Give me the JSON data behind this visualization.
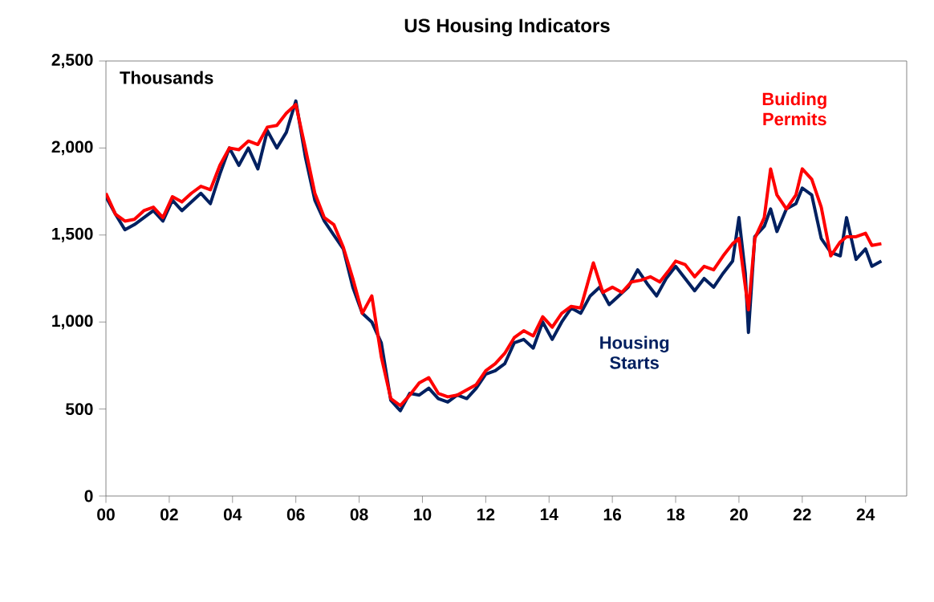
{
  "chart_data": {
    "type": "line",
    "title": "US Housing Indicators",
    "annotations": [
      "Thousands"
    ],
    "xlim": [
      2000,
      2025.3
    ],
    "ylim": [
      0,
      2500
    ],
    "xticks": [
      {
        "value": 2000,
        "label": "00"
      },
      {
        "value": 2002,
        "label": "02"
      },
      {
        "value": 2004,
        "label": "04"
      },
      {
        "value": 2006,
        "label": "06"
      },
      {
        "value": 2008,
        "label": "08"
      },
      {
        "value": 2010,
        "label": "10"
      },
      {
        "value": 2012,
        "label": "12"
      },
      {
        "value": 2014,
        "label": "14"
      },
      {
        "value": 2016,
        "label": "16"
      },
      {
        "value": 2018,
        "label": "18"
      },
      {
        "value": 2020,
        "label": "20"
      },
      {
        "value": 2022,
        "label": "22"
      },
      {
        "value": 2024,
        "label": "24"
      }
    ],
    "yticks": [
      {
        "value": 0,
        "label": "0"
      },
      {
        "value": 500,
        "label": "500"
      },
      {
        "value": 1000,
        "label": "1,000"
      },
      {
        "value": 1500,
        "label": "1,500"
      },
      {
        "value": 2000,
        "label": "2,000"
      },
      {
        "value": 2500,
        "label": "2,500"
      }
    ],
    "grid": false,
    "legend": false,
    "marker": "none",
    "line_style": "solid",
    "series": [
      {
        "name": "Housing Starts",
        "color": "#002060",
        "x": [
          2000.0,
          2000.3,
          2000.6,
          2000.9,
          2001.2,
          2001.5,
          2001.8,
          2002.1,
          2002.4,
          2002.7,
          2003.0,
          2003.3,
          2003.6,
          2003.9,
          2004.2,
          2004.5,
          2004.8,
          2005.1,
          2005.4,
          2005.7,
          2006.0,
          2006.3,
          2006.6,
          2006.9,
          2007.2,
          2007.5,
          2007.8,
          2008.1,
          2008.4,
          2008.7,
          2009.0,
          2009.3,
          2009.6,
          2009.9,
          2010.2,
          2010.5,
          2010.8,
          2011.1,
          2011.4,
          2011.7,
          2012.0,
          2012.3,
          2012.6,
          2012.9,
          2013.2,
          2013.5,
          2013.8,
          2014.1,
          2014.4,
          2014.7,
          2015.0,
          2015.3,
          2015.6,
          2015.9,
          2016.2,
          2016.5,
          2016.8,
          2017.1,
          2017.4,
          2017.7,
          2018.0,
          2018.3,
          2018.6,
          2018.9,
          2019.2,
          2019.5,
          2019.8,
          2020.0,
          2020.2,
          2020.3,
          2020.5,
          2020.8,
          2021.0,
          2021.2,
          2021.5,
          2021.8,
          2022.0,
          2022.3,
          2022.6,
          2022.9,
          2023.2,
          2023.4,
          2023.7,
          2024.0,
          2024.2,
          2024.5
        ],
        "values": [
          1720,
          1620,
          1530,
          1560,
          1600,
          1640,
          1580,
          1700,
          1640,
          1690,
          1740,
          1680,
          1850,
          2000,
          1900,
          2000,
          1880,
          2100,
          2000,
          2090,
          2270,
          1950,
          1700,
          1580,
          1500,
          1420,
          1200,
          1050,
          1000,
          880,
          550,
          490,
          590,
          580,
          620,
          560,
          540,
          580,
          560,
          620,
          700,
          720,
          760,
          880,
          900,
          850,
          1000,
          900,
          1000,
          1080,
          1050,
          1150,
          1200,
          1100,
          1150,
          1200,
          1300,
          1220,
          1150,
          1250,
          1320,
          1250,
          1180,
          1250,
          1200,
          1280,
          1350,
          1600,
          1280,
          940,
          1490,
          1550,
          1650,
          1520,
          1650,
          1680,
          1770,
          1730,
          1480,
          1400,
          1380,
          1600,
          1360,
          1420,
          1320,
          1350
        ]
      },
      {
        "name": "Buiding Permits",
        "color": "#ff0000",
        "x": [
          2000.0,
          2000.3,
          2000.6,
          2000.9,
          2001.2,
          2001.5,
          2001.8,
          2002.1,
          2002.4,
          2002.7,
          2003.0,
          2003.3,
          2003.6,
          2003.9,
          2004.2,
          2004.5,
          2004.8,
          2005.1,
          2005.4,
          2005.7,
          2006.0,
          2006.3,
          2006.6,
          2006.9,
          2007.2,
          2007.5,
          2007.8,
          2008.1,
          2008.4,
          2008.7,
          2009.0,
          2009.3,
          2009.6,
          2009.9,
          2010.2,
          2010.5,
          2010.8,
          2011.1,
          2011.4,
          2011.7,
          2012.0,
          2012.3,
          2012.6,
          2012.9,
          2013.2,
          2013.5,
          2013.8,
          2014.1,
          2014.4,
          2014.7,
          2015.0,
          2015.4,
          2015.7,
          2016.0,
          2016.3,
          2016.6,
          2016.9,
          2017.2,
          2017.5,
          2017.8,
          2018.0,
          2018.3,
          2018.6,
          2018.9,
          2019.2,
          2019.5,
          2019.8,
          2020.0,
          2020.3,
          2020.5,
          2020.8,
          2021.0,
          2021.2,
          2021.5,
          2021.8,
          2022.0,
          2022.3,
          2022.6,
          2022.9,
          2023.2,
          2023.4,
          2023.7,
          2024.0,
          2024.2,
          2024.5
        ],
        "values": [
          1740,
          1620,
          1580,
          1590,
          1640,
          1660,
          1600,
          1720,
          1690,
          1740,
          1780,
          1760,
          1900,
          2000,
          1990,
          2040,
          2020,
          2120,
          2130,
          2200,
          2250,
          2000,
          1740,
          1600,
          1560,
          1430,
          1250,
          1050,
          1150,
          800,
          560,
          520,
          580,
          650,
          680,
          590,
          570,
          580,
          610,
          640,
          720,
          760,
          820,
          910,
          950,
          920,
          1030,
          970,
          1050,
          1090,
          1080,
          1340,
          1170,
          1200,
          1170,
          1230,
          1240,
          1260,
          1230,
          1300,
          1350,
          1330,
          1260,
          1320,
          1300,
          1380,
          1450,
          1480,
          1070,
          1480,
          1600,
          1880,
          1730,
          1650,
          1730,
          1880,
          1820,
          1660,
          1380,
          1460,
          1490,
          1490,
          1510,
          1440,
          1450
        ]
      }
    ]
  }
}
